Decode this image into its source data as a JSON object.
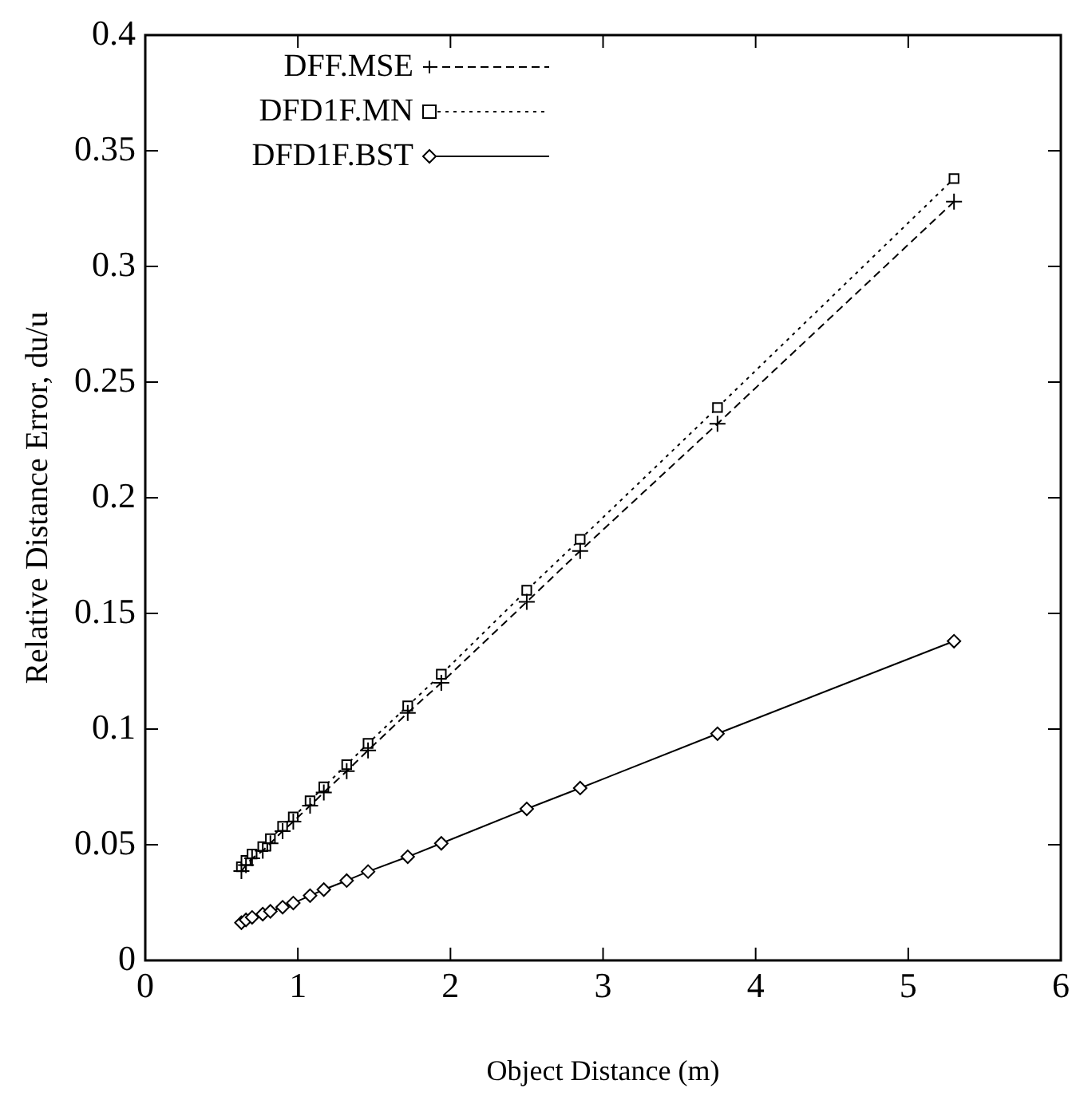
{
  "chart_data": {
    "type": "line",
    "xlabel": "Object Distance (m)",
    "ylabel": "Relative Distance Error, du/u",
    "x": [
      0.63,
      0.66,
      0.7,
      0.77,
      0.82,
      0.9,
      0.97,
      1.08,
      1.17,
      1.32,
      1.46,
      1.72,
      1.94,
      2.5,
      2.85,
      3.75,
      5.3
    ],
    "series": [
      {
        "name": "DFF.MSE",
        "color": "#000000",
        "marker": "cross",
        "line_style": "dashed",
        "values": [
          0.0386,
          0.0412,
          0.0441,
          0.0474,
          0.0506,
          0.0559,
          0.06,
          0.0669,
          0.0726,
          0.0818,
          0.0908,
          0.107,
          0.12,
          0.155,
          0.177,
          0.232,
          0.328
        ]
      },
      {
        "name": "DFD1F.MN",
        "color": "#000000",
        "marker": "square",
        "line_style": "dotted",
        "values": [
          0.0405,
          0.0432,
          0.046,
          0.0492,
          0.0526,
          0.058,
          0.062,
          0.069,
          0.075,
          0.0846,
          0.0938,
          0.11,
          0.1237,
          0.16,
          0.182,
          0.239,
          0.338
        ]
      },
      {
        "name": "DFD1F.BST",
        "color": "#000000",
        "marker": "diamond",
        "line_style": "solid",
        "values": [
          0.0163,
          0.0175,
          0.0186,
          0.02,
          0.0212,
          0.023,
          0.0248,
          0.028,
          0.0306,
          0.0345,
          0.0384,
          0.0448,
          0.0506,
          0.0655,
          0.0745,
          0.098,
          0.138
        ]
      }
    ],
    "xlim": [
      0,
      6
    ],
    "xticks": [
      0,
      1,
      2,
      3,
      4,
      5,
      6
    ],
    "ylim": [
      0,
      0.4
    ],
    "yticks": [
      0,
      0.05,
      0.1,
      0.15,
      0.2,
      0.25,
      0.3,
      0.35,
      0.4
    ],
    "grid": false,
    "legend": "top left"
  }
}
